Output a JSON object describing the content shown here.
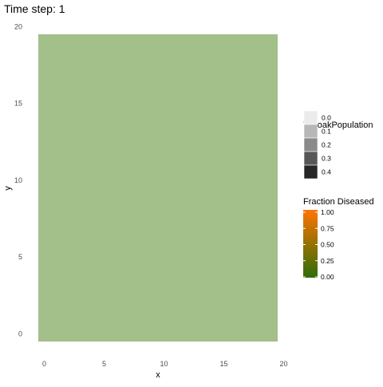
{
  "chart_data": {
    "type": "heatmap",
    "title": "Time step: 1",
    "xlabel": "x",
    "ylabel": "y",
    "xlim": [
      -0.5,
      19.5
    ],
    "ylim": [
      -0.5,
      19.5
    ],
    "x_ticks": [
      0,
      5,
      10,
      15,
      20
    ],
    "y_ticks": [
      0,
      5,
      10,
      15,
      20
    ],
    "grid": false,
    "cells": [
      {
        "x_range": [
          -0.5,
          19.5
        ],
        "y_range": [
          -0.5,
          19.5
        ],
        "tanoak_population": 0.4,
        "fraction_diseased": 0.0,
        "color": "#a3bf8a"
      }
    ],
    "legends": [
      {
        "title": "TanoakPopulation",
        "type": "discrete",
        "entries": [
          {
            "label": "0.0",
            "color": "#ebebeb"
          },
          {
            "label": "0.1",
            "color": "#b7b7b7"
          },
          {
            "label": "0.2",
            "color": "#8a8a8a"
          },
          {
            "label": "0.3",
            "color": "#575757"
          },
          {
            "label": "0.4",
            "color": "#262626"
          }
        ]
      },
      {
        "title": "Fraction Diseased",
        "type": "continuous",
        "range": [
          0,
          1
        ],
        "ticks": [
          {
            "value": 1.0,
            "label": "1.00"
          },
          {
            "value": 0.75,
            "label": "0.75"
          },
          {
            "value": 0.5,
            "label": "0.50"
          },
          {
            "value": 0.25,
            "label": "0.25"
          },
          {
            "value": 0.0,
            "label": "0.00"
          }
        ],
        "low_color": "#2e6e08",
        "high_color": "#ff7400"
      }
    ]
  }
}
